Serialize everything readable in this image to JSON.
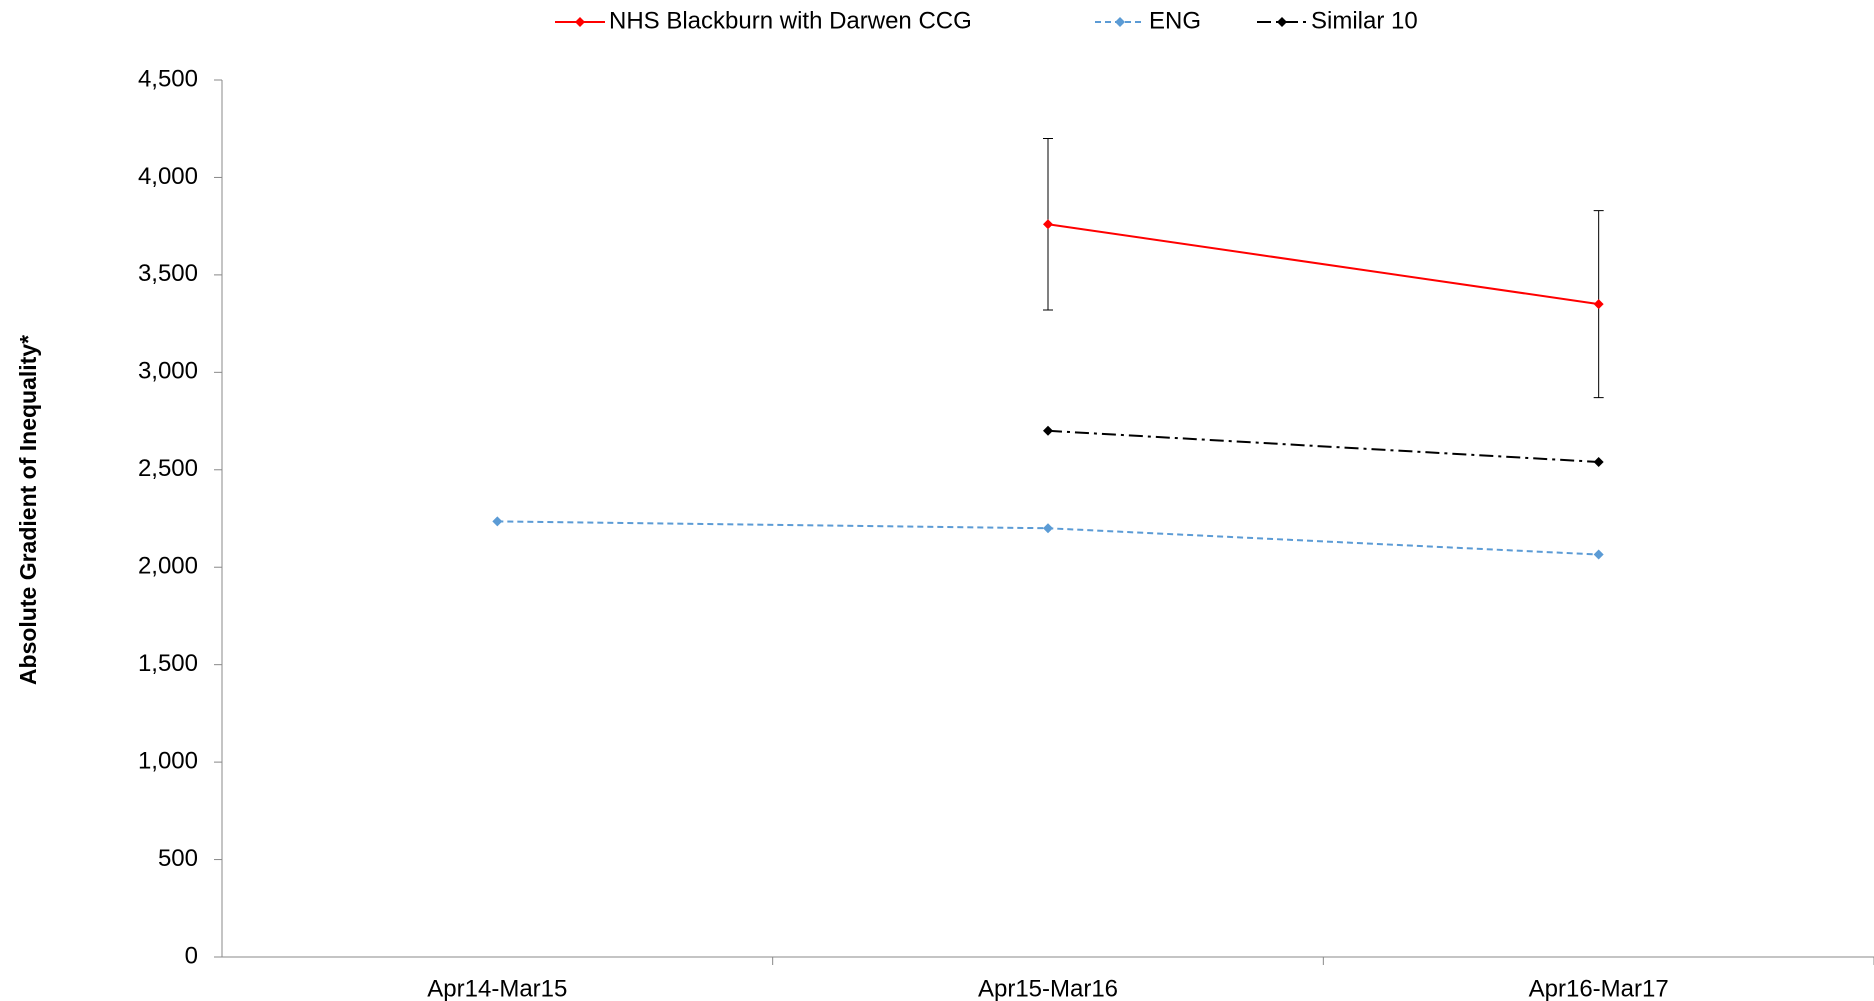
{
  "chart_data": {
    "type": "line",
    "y_label": "Absolute Gradient of Inequality*",
    "categories": [
      "Apr14-Mar15",
      "Apr15-Mar16",
      "Apr16-Mar17"
    ],
    "series": [
      {
        "name": "NHS Blackburn with Darwen CCG",
        "color": "#ff0000",
        "dash": "none",
        "values": [
          null,
          3760,
          3350
        ],
        "error_high": [
          null,
          4200,
          3830
        ],
        "error_low": [
          null,
          3320,
          2870
        ]
      },
      {
        "name": "ENG",
        "color": "#5b9bd5",
        "dash": "6,4",
        "values": [
          2235,
          2200,
          2065
        ]
      },
      {
        "name": "Similar 10",
        "color": "#000000",
        "dash": "14,5,3,5",
        "values": [
          null,
          2700,
          2540
        ]
      }
    ],
    "ylim": [
      0,
      4500
    ],
    "yticks": [
      0,
      500,
      {
        "value": 1000,
        "label": "1,000"
      },
      {
        "value": 1500,
        "label": "1,500"
      },
      {
        "value": 2000,
        "label": "2,000"
      },
      {
        "value": 2500,
        "label": "2,500"
      },
      {
        "value": 3000,
        "label": "3,000"
      },
      {
        "value": 3500,
        "label": "3,500"
      },
      {
        "value": 4000,
        "label": "4,000"
      },
      {
        "value": 4500,
        "label": "4,500"
      }
    ],
    "legend": "top"
  }
}
